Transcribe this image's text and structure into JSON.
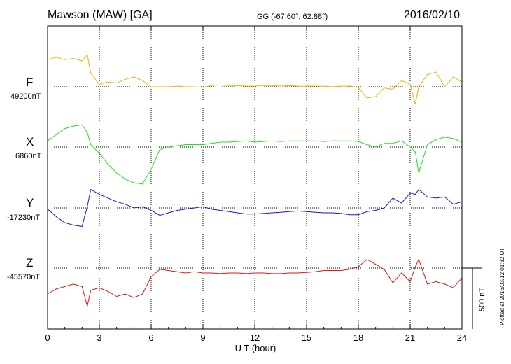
{
  "header": {
    "station": "Mawson (MAW)  [GA]",
    "coords": "GG (-67.60°,  62.88°)",
    "date": "2016/02/10"
  },
  "plotted_note": "Plotted at 2016/03/12 01:32 UT",
  "scale_bar_label": "500 nT",
  "colors": {
    "F": "#f2b000",
    "X": "#22e022",
    "Y": "#1515d6",
    "Z": "#e11515"
  },
  "chart_data": {
    "type": "line",
    "title": "Mawson (MAW)  [GA]",
    "xlabel": "U T (hour)",
    "xlim": [
      0,
      24
    ],
    "x_ticks": [
      0,
      3,
      6,
      9,
      12,
      15,
      18,
      21,
      24
    ],
    "x_tick_labels": [
      "0",
      "3",
      "6",
      "9",
      "12",
      "15",
      "18",
      "21",
      "24"
    ],
    "grid": true,
    "x": [
      0,
      0.5,
      1,
      1.5,
      2,
      2.3,
      2.5,
      3,
      3.5,
      4,
      4.5,
      5,
      5.5,
      6,
      6.5,
      7,
      7.5,
      8,
      8.5,
      9,
      9.5,
      10,
      10.5,
      11,
      11.5,
      12,
      12.5,
      13,
      13.5,
      14,
      14.5,
      15,
      15.5,
      16,
      16.5,
      17,
      17.5,
      18,
      18.5,
      19,
      19.5,
      20,
      20.5,
      21,
      21.3,
      21.5,
      22,
      22.5,
      23,
      23.5,
      24
    ],
    "series": [
      {
        "name": "F",
        "baseline": "49200nT",
        "values": [
          49420,
          49440,
          49420,
          49430,
          49410,
          49460,
          49310,
          49220,
          49240,
          49230,
          49260,
          49280,
          49250,
          49200,
          49200,
          49200,
          49205,
          49200,
          49200,
          49195,
          49210,
          49215,
          49210,
          49210,
          49205,
          49205,
          49210,
          49210,
          49205,
          49210,
          49205,
          49205,
          49205,
          49205,
          49200,
          49205,
          49205,
          49195,
          49110,
          49120,
          49190,
          49180,
          49250,
          49220,
          49060,
          49200,
          49300,
          49320,
          49200,
          49280,
          49240
        ]
      },
      {
        "name": "X",
        "baseline": "6860nT",
        "values": [
          6910,
          6960,
          7010,
          7030,
          7040,
          6980,
          6880,
          6810,
          6720,
          6650,
          6600,
          6570,
          6560,
          6680,
          6840,
          6860,
          6870,
          6880,
          6880,
          6880,
          6890,
          6900,
          6900,
          6905,
          6910,
          6900,
          6905,
          6910,
          6905,
          6910,
          6910,
          6910,
          6910,
          6905,
          6910,
          6910,
          6910,
          6905,
          6880,
          6860,
          6890,
          6890,
          6910,
          6860,
          6820,
          6650,
          6880,
          6920,
          6940,
          6930,
          6900
        ]
      },
      {
        "name": "Y",
        "baseline": "-17230nT",
        "values": [
          -17240,
          -17300,
          -17350,
          -17370,
          -17380,
          -17220,
          -17080,
          -17120,
          -17150,
          -17180,
          -17200,
          -17230,
          -17220,
          -17250,
          -17290,
          -17270,
          -17250,
          -17240,
          -17230,
          -17220,
          -17240,
          -17250,
          -17260,
          -17270,
          -17280,
          -17280,
          -17275,
          -17270,
          -17265,
          -17260,
          -17255,
          -17260,
          -17265,
          -17270,
          -17270,
          -17275,
          -17285,
          -17285,
          -17260,
          -17250,
          -17230,
          -17150,
          -17190,
          -17110,
          -17120,
          -17080,
          -17140,
          -17150,
          -17140,
          -17200,
          -17180
        ]
      },
      {
        "name": "Z",
        "baseline": "-45570nT",
        "values": [
          -45780,
          -45740,
          -45720,
          -45700,
          -45720,
          -45880,
          -45750,
          -45730,
          -45760,
          -45800,
          -45780,
          -45810,
          -45780,
          -45640,
          -45580,
          -45590,
          -45600,
          -45610,
          -45600,
          -45610,
          -45610,
          -45615,
          -45610,
          -45610,
          -45615,
          -45610,
          -45610,
          -45615,
          -45615,
          -45610,
          -45610,
          -45605,
          -45600,
          -45590,
          -45590,
          -45590,
          -45580,
          -45560,
          -45500,
          -45540,
          -45580,
          -45690,
          -45610,
          -45680,
          -45560,
          -45500,
          -45700,
          -45680,
          -45700,
          -45730,
          -45650
        ]
      }
    ]
  }
}
